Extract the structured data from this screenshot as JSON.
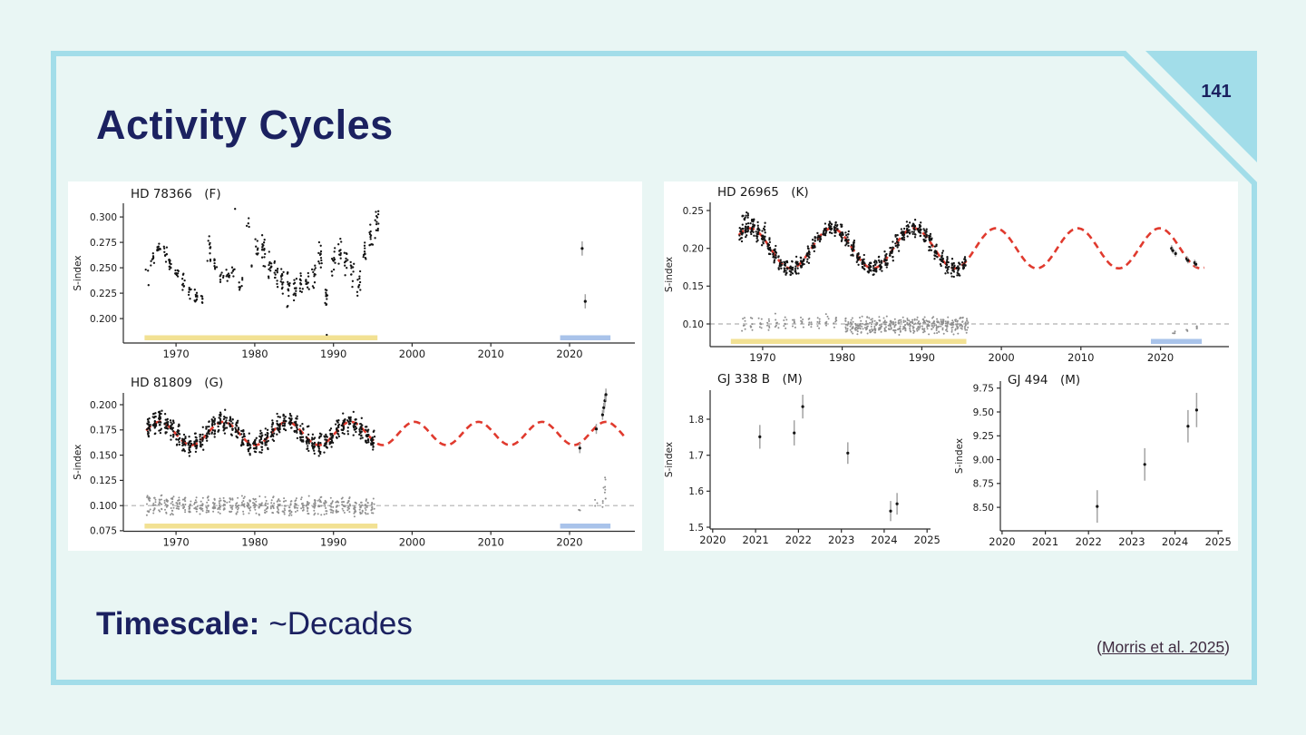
{
  "slide": {
    "page_number": "141",
    "title": "Activity Cycles",
    "timescale": {
      "label": "Timescale:",
      "value": "~Decades"
    },
    "citation": {
      "prefix": "(",
      "link_text": "Morris et al. 2025",
      "suffix": ")"
    },
    "colors": {
      "background": "#e9f6f4",
      "frame": "#a2dde9",
      "heading_text": "#1b2160",
      "citation_text": "#3f2b40"
    }
  },
  "chart_style": {
    "panel_background": "#ffffff",
    "text_color": "#1a1a1a",
    "axis_color": "#2b2b2b",
    "point_black": "#141414",
    "point_gray": "#8f8f8f",
    "errorbar_gray": "#a3a3a3",
    "fit_red": "#e03a2e",
    "baseline_gray": "#b0b0b0",
    "observed_bar_yellow": "#f2e193",
    "new_bar_blue": "#a9c3ea"
  },
  "chart_data": [
    {
      "type": "scatter",
      "title": "HD 78366  (F)",
      "ylabel": "S-index",
      "xlim": [
        1963.3,
        2028.3
      ],
      "ylim": [
        0.176,
        0.3135
      ],
      "xticks": [
        1970,
        1980,
        1990,
        2000,
        2010,
        2020
      ],
      "yticks": [
        "0.200",
        "0.225",
        "0.250",
        "0.275",
        "0.300"
      ],
      "span_bars": [
        {
          "from": 1966.0,
          "to": 1995.6,
          "color": "yellow"
        },
        {
          "from": 2018.8,
          "to": 2025.2,
          "color": "blue"
        }
      ],
      "clusters": [
        [
          1966.3,
          0.247,
          0.004,
          2
        ],
        [
          1966.5,
          0.233,
          0.001,
          1
        ],
        [
          1967.0,
          0.259,
          0.008,
          8
        ],
        [
          1967.8,
          0.27,
          0.011,
          12
        ],
        [
          1968.6,
          0.264,
          0.01,
          9
        ],
        [
          1969.3,
          0.251,
          0.011,
          10
        ],
        [
          1970.1,
          0.248,
          0.011,
          9
        ],
        [
          1970.9,
          0.236,
          0.011,
          9
        ],
        [
          1971.7,
          0.229,
          0.011,
          8
        ],
        [
          1972.5,
          0.221,
          0.01,
          10
        ],
        [
          1973.3,
          0.219,
          0.007,
          6
        ],
        [
          1974.2,
          0.268,
          0.022,
          11
        ],
        [
          1975.0,
          0.251,
          0.011,
          8
        ],
        [
          1975.8,
          0.242,
          0.01,
          7
        ],
        [
          1976.6,
          0.247,
          0.011,
          8
        ],
        [
          1977.3,
          0.249,
          0.009,
          6
        ],
        [
          1977.5,
          0.308,
          0.0,
          1
        ],
        [
          1978.2,
          0.233,
          0.013,
          8
        ],
        [
          1979.2,
          0.293,
          0.008,
          4
        ],
        [
          1979.8,
          0.252,
          0.004,
          2
        ],
        [
          1980.3,
          0.272,
          0.012,
          8
        ],
        [
          1981.1,
          0.268,
          0.023,
          16
        ],
        [
          1981.9,
          0.251,
          0.016,
          14
        ],
        [
          1982.7,
          0.245,
          0.017,
          13
        ],
        [
          1983.5,
          0.238,
          0.016,
          14
        ],
        [
          1984.3,
          0.229,
          0.02,
          14
        ],
        [
          1985.1,
          0.229,
          0.015,
          13
        ],
        [
          1985.9,
          0.232,
          0.014,
          12
        ],
        [
          1986.7,
          0.238,
          0.013,
          11
        ],
        [
          1987.5,
          0.245,
          0.017,
          12
        ],
        [
          1988.3,
          0.259,
          0.019,
          13
        ],
        [
          1989.1,
          0.223,
          0.012,
          12
        ],
        [
          1989.15,
          0.184,
          0.0,
          1
        ],
        [
          1990.0,
          0.256,
          0.016,
          11
        ],
        [
          1990.8,
          0.268,
          0.016,
          13
        ],
        [
          1991.6,
          0.253,
          0.018,
          11
        ],
        [
          1992.4,
          0.245,
          0.017,
          11
        ],
        [
          1993.2,
          0.233,
          0.019,
          11
        ],
        [
          1994.0,
          0.265,
          0.017,
          11
        ],
        [
          1994.8,
          0.278,
          0.016,
          11
        ],
        [
          1995.5,
          0.291,
          0.021,
          13
        ]
      ],
      "points": [
        [
          2021.6,
          0.269,
          0.007
        ],
        [
          2022.0,
          0.217,
          0.007
        ]
      ]
    },
    {
      "type": "scatter",
      "title": "HD 81809  (G)",
      "ylabel": "S-index",
      "xlim": [
        1963.3,
        2028.3
      ],
      "ylim": [
        0.0745,
        0.2117
      ],
      "xticks": [
        1970,
        1980,
        1990,
        2000,
        2010,
        2020
      ],
      "yticks": [
        "0.075",
        "0.100",
        "0.125",
        "0.150",
        "0.175",
        "0.200"
      ],
      "baseline": 0.1,
      "fit": {
        "mean": 0.1715,
        "amplitude": 0.0115,
        "period_years": 8.1,
        "peak_year": 1967.9,
        "from": 1966.2,
        "to": 2027.3
      },
      "cluster_bands": [
        {
          "start": 1966.5,
          "end": 1995.7,
          "step": 0.75,
          "half_spread": 0.013,
          "n_per": 20,
          "color": "black",
          "follow_fit": true
        },
        {
          "start": 1966.5,
          "end": 1995.7,
          "step": 0.75,
          "half_spread": 0.011,
          "n_per": 14,
          "color": "gray",
          "center": 0.1
        }
      ],
      "gray_clusters": [
        [
          2021.3,
          0.095,
          0.004,
          3
        ],
        [
          2023.4,
          0.103,
          0.004,
          3
        ],
        [
          2024.4,
          0.112,
          0.014,
          9
        ],
        [
          2024.55,
          0.126,
          0.003,
          2
        ]
      ],
      "span_bars": [
        {
          "from": 1966.0,
          "to": 1995.6,
          "color": "yellow"
        },
        {
          "from": 2018.8,
          "to": 2025.2,
          "color": "blue"
        }
      ],
      "points": [
        [
          2021.3,
          0.157,
          0.005
        ],
        [
          2023.4,
          0.176,
          0.005
        ],
        [
          2024.2,
          0.19,
          0.005
        ],
        [
          2024.35,
          0.197,
          0.005
        ],
        [
          2024.5,
          0.204,
          0.006
        ],
        [
          2024.62,
          0.21,
          0.006
        ]
      ]
    },
    {
      "type": "scatter",
      "title": "HD 26965  (K)",
      "ylabel": "S-index",
      "xlim": [
        1963.4,
        2028.6
      ],
      "ylim": [
        0.07,
        0.2608
      ],
      "xticks": [
        1970,
        1980,
        1990,
        2000,
        2010,
        2020
      ],
      "yticks": [
        "0.10",
        "0.15",
        "0.20",
        "0.25"
      ],
      "baseline": 0.1,
      "fit": {
        "mean": 0.2,
        "amplitude": 0.0265,
        "period_years": 10.3,
        "peak_year": 1968.4,
        "from": 1967.0,
        "to": 2025.6
      },
      "cluster_bands": [
        {
          "start": 1967.3,
          "end": 1995.8,
          "step": 0.7,
          "half_spread": 0.013,
          "n_per": 18,
          "color": "black",
          "follow_fit": true
        },
        {
          "start": 1967.6,
          "end": 1980.0,
          "step": 1.05,
          "half_spread": 0.013,
          "n_per": 7,
          "color": "gray",
          "center": 0.102
        },
        {
          "start": 1980.6,
          "end": 1995.8,
          "step": 0.6,
          "half_spread": 0.013,
          "n_per": 15,
          "color": "gray",
          "center": 0.098
        }
      ],
      "clusters": [
        [
          1967.6,
          0.24,
          0.009,
          7
        ],
        [
          1968.1,
          0.245,
          0.006,
          5
        ],
        [
          1968.8,
          0.236,
          0.008,
          5
        ],
        [
          1970.1,
          0.229,
          0.006,
          4
        ]
      ],
      "gray_clusters": [
        [
          2021.6,
          0.087,
          0.004,
          4
        ],
        [
          2023.4,
          0.092,
          0.004,
          3
        ],
        [
          2024.4,
          0.097,
          0.005,
          5
        ]
      ],
      "span_bars": [
        {
          "from": 1966.0,
          "to": 1995.6,
          "color": "yellow"
        },
        {
          "from": 2018.8,
          "to": 2025.2,
          "color": "blue"
        }
      ],
      "points": [
        [
          2021.4,
          0.2,
          0.004
        ],
        [
          2021.55,
          0.197,
          0.004
        ],
        [
          2021.9,
          0.193,
          0.004
        ],
        [
          2023.3,
          0.186,
          0.004
        ],
        [
          2023.45,
          0.184,
          0.004
        ],
        [
          2024.3,
          0.181,
          0.004
        ],
        [
          2024.45,
          0.179,
          0.004
        ]
      ]
    },
    {
      "type": "scatter",
      "title": "GJ 338 B  (M)",
      "ylabel": "S-index",
      "xlim": [
        2019.94,
        2025.08
      ],
      "ylim": [
        1.495,
        1.8806
      ],
      "xticks": [
        2020,
        2021,
        2022,
        2023,
        2024,
        2025
      ],
      "yticks": [
        "1.5",
        "1.6",
        "1.7",
        "1.8"
      ],
      "points": [
        [
          2021.1,
          1.751,
          0.033
        ],
        [
          2021.9,
          1.762,
          0.035
        ],
        [
          2022.1,
          1.835,
          0.033
        ],
        [
          2023.15,
          1.706,
          0.03
        ],
        [
          2024.15,
          1.545,
          0.028
        ],
        [
          2024.3,
          1.565,
          0.03
        ]
      ]
    },
    {
      "type": "scatter",
      "title": "GJ 494  (M)",
      "ylabel": "S-index",
      "xlim": [
        2019.96,
        2025.1
      ],
      "ylim": [
        8.254,
        9.823
      ],
      "xticks": [
        2020,
        2021,
        2022,
        2023,
        2024,
        2025
      ],
      "yticks": [
        "8.50",
        "8.75",
        "9.00",
        "9.25",
        "9.50",
        "9.75"
      ],
      "points": [
        [
          2022.2,
          8.51,
          0.17
        ],
        [
          2023.3,
          8.95,
          0.17
        ],
        [
          2024.3,
          9.35,
          0.17
        ],
        [
          2024.5,
          9.52,
          0.18
        ]
      ]
    }
  ]
}
